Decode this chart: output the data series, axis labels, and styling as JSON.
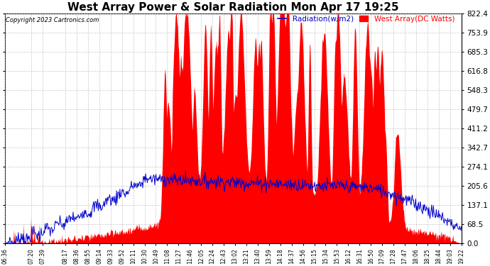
{
  "title": "West Array Power & Solar Radiation Mon Apr 17 19:25",
  "copyright": "Copyright 2023 Cartronics.com",
  "legend_radiation": "Radiation(w/m2)",
  "legend_west": "West Array(DC Watts)",
  "ylabel_right": [
    "822.4",
    "753.9",
    "685.3",
    "616.8",
    "548.3",
    "479.7",
    "411.2",
    "342.7",
    "274.1",
    "205.6",
    "137.1",
    "68.5",
    "0.0"
  ],
  "ymax": 822.4,
  "ymin": 0.0,
  "background_color": "#ffffff",
  "plot_bg_color": "#ffffff",
  "grid_color": "#b0b0b0",
  "radiation_color": "#0000cc",
  "west_color": "#ff0000",
  "title_fontsize": 11,
  "label_fontsize": 7.5,
  "x_tick_labels": [
    "06:36",
    "07:20",
    "07:39",
    "08:17",
    "08:36",
    "08:55",
    "09:14",
    "09:33",
    "09:52",
    "10:11",
    "10:30",
    "10:49",
    "11:08",
    "11:27",
    "11:46",
    "12:05",
    "12:24",
    "12:43",
    "13:02",
    "13:21",
    "13:40",
    "13:59",
    "14:18",
    "14:37",
    "14:56",
    "15:15",
    "15:34",
    "15:53",
    "16:12",
    "16:31",
    "16:50",
    "17:09",
    "17:28",
    "17:47",
    "18:06",
    "18:25",
    "18:44",
    "19:03",
    "19:22"
  ]
}
